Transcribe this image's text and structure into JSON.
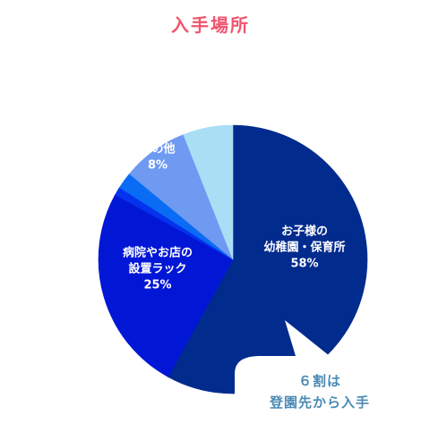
{
  "title": "入手場所",
  "colors": {
    "title": "#f2546e",
    "callout_text": "#4a8ab4",
    "label_text": "#ffffff",
    "callout_bg": "#ffffff"
  },
  "chart_data": {
    "type": "pie",
    "title": "入手場所",
    "start_angle_deg": 0,
    "direction": "clockwise",
    "slices": [
      {
        "label_lines": [
          "お子様の",
          "幼稚園・保育所"
        ],
        "value": 58,
        "value_label": "58%",
        "color": "#022b8e"
      },
      {
        "label_lines": [
          "病院やお店の",
          "設置ラック"
        ],
        "value": 25,
        "value_label": "25%",
        "color": "#0217d6"
      },
      {
        "label_lines": [],
        "value": 1,
        "value_label": "",
        "color": "#0433ee"
      },
      {
        "label_lines": [],
        "value": 2,
        "value_label": "",
        "color": "#0a6cf4"
      },
      {
        "label_lines": [
          "その他"
        ],
        "value": 8,
        "value_label": "8%",
        "color": "#6e9af2"
      },
      {
        "label_lines": [],
        "value": 6,
        "value_label": "",
        "color": "#a8dff5"
      }
    ]
  },
  "callout": {
    "lines": [
      "６割は",
      "登園先から入手"
    ]
  }
}
